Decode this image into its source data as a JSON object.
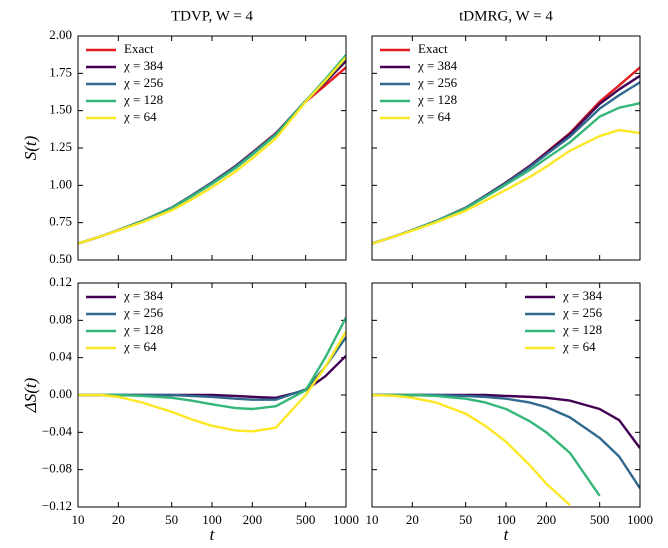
{
  "chart_data": [
    {
      "type": "line",
      "title": "TDVP, W = 4",
      "ylabel": "S(t)",
      "log_x": true,
      "legend": "upper left",
      "x": [
        10,
        15,
        20,
        30,
        50,
        70,
        100,
        150,
        200,
        300,
        500,
        700,
        1000
      ],
      "xlim": [
        10,
        1000
      ],
      "xticks": [
        10,
        20,
        50,
        100,
        200,
        500,
        1000
      ],
      "ylim": [
        0.5,
        2.0
      ],
      "yticks": [
        {
          "value": 0.5,
          "label": "0.50"
        },
        0.75,
        {
          "value": 1.0,
          "label": "1.00"
        },
        1.25,
        {
          "value": 1.5,
          "label": "1.50"
        },
        1.75,
        {
          "value": 2.0,
          "label": "2.00"
        }
      ],
      "series": [
        {
          "name": "Exact",
          "color": "#e41a1c",
          "values": [
            0.61,
            0.66,
            0.7,
            0.76,
            0.85,
            0.93,
            1.02,
            1.13,
            1.22,
            1.35,
            1.56,
            1.67,
            1.79
          ]
        },
        {
          "name": "χ = 384",
          "color": "#440154",
          "values": [
            0.61,
            0.66,
            0.7,
            0.76,
            0.85,
            0.93,
            1.02,
            1.129,
            1.218,
            1.347,
            1.565,
            1.69,
            1.832
          ]
        },
        {
          "name": "χ = 256",
          "color": "#31688e",
          "values": [
            0.61,
            0.66,
            0.7,
            0.76,
            0.85,
            0.929,
            1.018,
            1.126,
            1.215,
            1.345,
            1.566,
            1.7,
            1.852
          ]
        },
        {
          "name": "χ = 128",
          "color": "#35b779",
          "values": [
            0.61,
            0.66,
            0.7,
            0.759,
            0.847,
            0.924,
            1.01,
            1.116,
            1.205,
            1.338,
            1.565,
            1.71,
            1.873
          ]
        },
        {
          "name": "χ = 64",
          "color": "#fde725",
          "values": [
            0.61,
            0.66,
            0.698,
            0.752,
            0.832,
            0.904,
            0.987,
            1.092,
            1.181,
            1.315,
            1.56,
            1.7,
            1.858
          ]
        }
      ]
    },
    {
      "type": "line",
      "title": "tDMRG, W = 4",
      "log_x": true,
      "legend": "upper left",
      "x": [
        10,
        15,
        20,
        30,
        50,
        70,
        100,
        150,
        200,
        300,
        500,
        700,
        1000
      ],
      "xlim": [
        10,
        1000
      ],
      "xticks": [
        10,
        20,
        50,
        100,
        200,
        500,
        1000
      ],
      "ylim": [
        0.5,
        2.0
      ],
      "yticks": [
        0.5,
        0.75,
        1.0,
        1.25,
        1.5,
        1.75,
        2.0
      ],
      "series": [
        {
          "name": "Exact",
          "color": "#e41a1c",
          "values": [
            0.61,
            0.66,
            0.7,
            0.76,
            0.85,
            0.93,
            1.02,
            1.13,
            1.22,
            1.35,
            1.56,
            1.67,
            1.79
          ]
        },
        {
          "name": "χ = 384",
          "color": "#440154",
          "values": [
            0.61,
            0.66,
            0.7,
            0.76,
            0.85,
            0.93,
            1.019,
            1.128,
            1.217,
            1.344,
            1.545,
            1.643,
            1.733
          ]
        },
        {
          "name": "χ = 256",
          "color": "#31688e",
          "values": [
            0.61,
            0.66,
            0.7,
            0.76,
            0.849,
            0.928,
            1.016,
            1.122,
            1.207,
            1.326,
            1.514,
            1.604,
            1.69
          ]
        },
        {
          "name": "χ = 128",
          "color": "#35b779",
          "values": [
            0.61,
            0.66,
            0.7,
            0.759,
            0.846,
            0.922,
            1.005,
            1.102,
            1.18,
            1.288,
            1.46,
            1.52,
            1.55
          ]
        },
        {
          "name": "χ = 64",
          "color": "#fde725",
          "values": [
            0.61,
            0.659,
            0.697,
            0.752,
            0.83,
            0.897,
            0.97,
            1.055,
            1.125,
            1.232,
            1.33,
            1.37,
            1.35
          ]
        }
      ]
    },
    {
      "type": "line",
      "ylabel": "ΔS(t)",
      "xlabel": "t",
      "log_x": true,
      "legend": "upper left",
      "x": [
        10,
        15,
        20,
        30,
        50,
        70,
        100,
        150,
        200,
        300,
        500,
        700,
        1000
      ],
      "xlim": [
        10,
        1000
      ],
      "xticks": [
        10,
        20,
        50,
        100,
        200,
        500,
        1000
      ],
      "ylim": [
        -0.12,
        0.12
      ],
      "yticks": [
        {
          "value": -0.12,
          "label": "−0.12"
        },
        {
          "value": -0.08,
          "label": "−0.08"
        },
        {
          "value": -0.04,
          "label": "−0.04"
        },
        {
          "value": 0,
          "label": "0.00"
        },
        0.04,
        0.08,
        0.12
      ],
      "series": [
        {
          "name": "χ = 384",
          "color": "#440154",
          "values": [
            0,
            0,
            0,
            0,
            0,
            0,
            0,
            -0.001,
            -0.002,
            -0.003,
            0.005,
            0.02,
            0.042
          ]
        },
        {
          "name": "χ = 256",
          "color": "#31688e",
          "values": [
            0,
            0,
            0,
            0,
            0,
            -0.001,
            -0.002,
            -0.004,
            -0.005,
            -0.005,
            0.006,
            0.03,
            0.062
          ]
        },
        {
          "name": "χ = 128",
          "color": "#35b779",
          "values": [
            0,
            0,
            0,
            -0.001,
            -0.003,
            -0.006,
            -0.01,
            -0.014,
            -0.015,
            -0.012,
            0.005,
            0.04,
            0.083
          ]
        },
        {
          "name": "χ = 64",
          "color": "#fde725",
          "values": [
            0,
            0,
            -0.002,
            -0.008,
            -0.018,
            -0.026,
            -0.033,
            -0.038,
            -0.039,
            -0.035,
            0.0,
            0.03,
            0.068
          ]
        }
      ]
    },
    {
      "type": "line",
      "xlabel": "t",
      "log_x": true,
      "legend": "upper right",
      "x": [
        10,
        15,
        20,
        30,
        50,
        70,
        100,
        150,
        200,
        300,
        500,
        700,
        1000
      ],
      "xlim": [
        10,
        1000
      ],
      "xticks": [
        {
          "value": 10,
          "label": "10"
        },
        20,
        50,
        100,
        200,
        500,
        1000
      ],
      "ylim": [
        -0.12,
        0.12
      ],
      "yticks": [
        -0.12,
        -0.08,
        -0.04,
        0,
        0.04,
        0.08,
        0.12
      ],
      "series": [
        {
          "name": "χ = 384",
          "color": "#440154",
          "values": [
            0,
            0,
            0,
            0,
            0,
            0,
            -0.001,
            -0.002,
            -0.003,
            -0.006,
            -0.015,
            -0.027,
            -0.057
          ]
        },
        {
          "name": "χ = 256",
          "color": "#31688e",
          "values": [
            0,
            0,
            0,
            0,
            -0.001,
            -0.002,
            -0.004,
            -0.008,
            -0.013,
            -0.024,
            -0.046,
            -0.066,
            -0.1
          ]
        },
        {
          "name": "χ = 128",
          "color": "#35b779",
          "values": [
            0,
            0,
            0,
            -0.001,
            -0.004,
            -0.008,
            -0.015,
            -0.028,
            -0.04,
            -0.062,
            -0.108,
            null,
            null
          ]
        },
        {
          "name": "χ = 64",
          "color": "#fde725",
          "values": [
            0,
            -0.001,
            -0.003,
            -0.008,
            -0.02,
            -0.033,
            -0.05,
            -0.075,
            -0.095,
            -0.118,
            null,
            null,
            null
          ]
        }
      ]
    }
  ]
}
